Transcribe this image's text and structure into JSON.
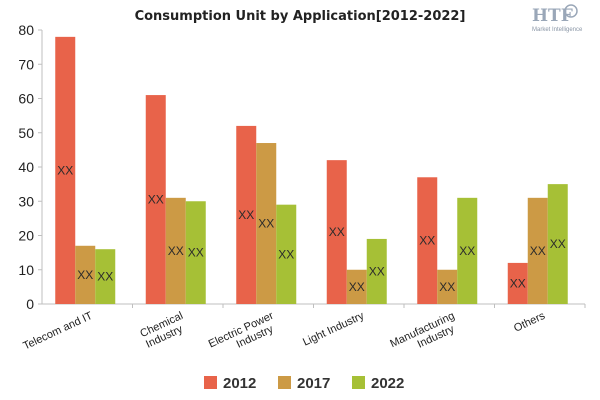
{
  "logo": {
    "mark": "HTF",
    "sub": "Market Intelligence"
  },
  "chart_data": {
    "type": "bar",
    "title": "Consumption Unit by  Application[2012-2022]",
    "categories": [
      [
        "Telecom and IT"
      ],
      [
        "Chemical",
        "Industry"
      ],
      [
        "Electric Power",
        "Industry"
      ],
      [
        "Light Industry"
      ],
      [
        "Manufacturing",
        "Industry"
      ],
      [
        "Others"
      ]
    ],
    "series": [
      {
        "name": "2012",
        "color": "#e8634a",
        "values": [
          78,
          61,
          52,
          42,
          37,
          12
        ]
      },
      {
        "name": "2017",
        "color": "#cc9a45",
        "values": [
          17,
          31,
          47,
          10,
          10,
          31
        ]
      },
      {
        "name": "2022",
        "color": "#a6c036",
        "values": [
          16,
          30,
          29,
          19,
          31,
          35
        ]
      }
    ],
    "data_label": "XX",
    "ylim": [
      0,
      80
    ],
    "yticks": [
      0,
      10,
      20,
      30,
      40,
      50,
      60,
      70,
      80
    ],
    "grid": false,
    "legend": "bottom",
    "xlabel": "",
    "ylabel": ""
  }
}
